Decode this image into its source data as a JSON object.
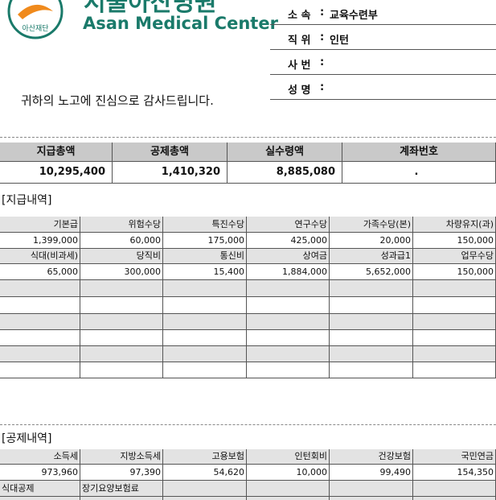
{
  "header": {
    "logo_korean": "서울아산병원",
    "logo_english": "Asan Medical Center",
    "logo_foundation": "아산재단",
    "greeting": "귀하의 노고에 진심으로 감사드립니다.",
    "separator": ":",
    "info": [
      {
        "label": "소 속",
        "value": "교육수련부"
      },
      {
        "label": "직 위",
        "value": "인턴"
      },
      {
        "label": "사 번"
      },
      {
        "label": "성 명"
      }
    ]
  },
  "summary": {
    "headers": [
      "지급총액",
      "공제총액",
      "실수령액",
      "계좌번호"
    ],
    "values": [
      "10,295,400",
      "1,410,320",
      "8,885,080",
      "."
    ]
  },
  "payments": {
    "title": "[지급내역]",
    "rows": [
      [
        "기본급",
        "위험수당",
        "특진수당",
        "연구수당",
        "가족수당(본)",
        "차량유지(과)"
      ],
      [
        "1,399,000",
        "60,000",
        "175,000",
        "425,000",
        "20,000",
        "150,000"
      ],
      [
        "식대(비과세)",
        "당직비",
        "통신비",
        "상여금",
        "성과급1",
        "업무수당"
      ],
      [
        "65,000",
        "300,000",
        "15,400",
        "1,884,000",
        "5,652,000",
        "150,000"
      ]
    ]
  },
  "deductions": {
    "title": "[공제내역]",
    "rows": [
      [
        "소득세",
        "지방소득세",
        "고용보험",
        "인턴회비",
        "건강보험",
        "국민연금"
      ],
      [
        "973,960",
        "97,390",
        "54,620",
        "10,000",
        "99,490",
        "154,350"
      ],
      [
        "식대공제",
        "장기요양보험료"
      ]
    ]
  }
}
